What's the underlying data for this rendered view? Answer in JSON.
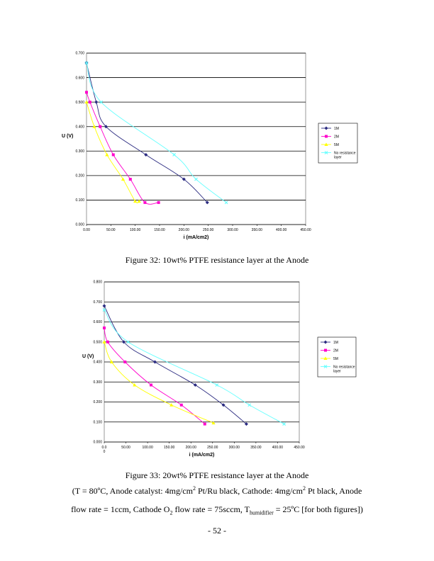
{
  "chart_data": [
    {
      "type": "line",
      "title": "",
      "xlabel": "i (mA/cm2)",
      "ylabel": "U (V)",
      "xlim": [
        0,
        450
      ],
      "ylim": [
        0,
        0.7
      ],
      "grid": true,
      "xticks": [
        "0.00",
        "50.00",
        "100.00",
        "150.00",
        "200.00",
        "250.00",
        "300.00",
        "350.00",
        "400.00",
        "450.00"
      ],
      "yticks": [
        "0.000",
        "0.100",
        "0.200",
        "0.300",
        "0.400",
        "0.500",
        "0.600",
        "0.700"
      ],
      "series": [
        {
          "name": "1M",
          "color": "#2b2b80",
          "marker": "diamond",
          "x": [
            0,
            20,
            40,
            122,
            200,
            248
          ],
          "y": [
            0.66,
            0.5,
            0.4,
            0.285,
            0.185,
            0.09
          ]
        },
        {
          "name": "2M",
          "color": "#ff00cc",
          "marker": "square",
          "x": [
            0,
            7,
            28,
            55,
            90,
            120,
            148
          ],
          "y": [
            0.54,
            0.5,
            0.4,
            0.285,
            0.185,
            0.09,
            0.09
          ]
        },
        {
          "name": "5M",
          "color": "#ffff00",
          "marker": "triangle",
          "x": [
            0,
            16,
            42,
            75,
            100,
            108
          ],
          "y": [
            0.5,
            0.4,
            0.285,
            0.185,
            0.095,
            0.095
          ]
        },
        {
          "name": "No resistance layer",
          "color": "#66ffff",
          "marker": "x",
          "x": [
            0,
            30,
            180,
            225,
            287
          ],
          "y": [
            0.66,
            0.5,
            0.285,
            0.185,
            0.09
          ]
        }
      ],
      "legend_position": "right"
    },
    {
      "type": "line",
      "title": "",
      "xlabel": "i (mA/cm2)",
      "ylabel": "U (V)",
      "xlim": [
        0,
        450
      ],
      "ylim": [
        0,
        0.8
      ],
      "grid": true,
      "xticks": [
        "0.0\n0",
        "50.00",
        "100.00",
        "150.00",
        "200.00",
        "250.00",
        "300.00",
        "350.00",
        "400.00",
        "450.00"
      ],
      "yticks": [
        "0.000",
        "0.100",
        "0.200",
        "0.300",
        "0.400",
        "0.500",
        "0.600",
        "0.700",
        "0.800"
      ],
      "series": [
        {
          "name": "1M",
          "color": "#2b2b80",
          "marker": "diamond",
          "x": [
            0,
            45,
            117,
            210,
            275,
            328
          ],
          "y": [
            0.68,
            0.5,
            0.4,
            0.285,
            0.185,
            0.09
          ]
        },
        {
          "name": "2M",
          "color": "#ff00cc",
          "marker": "square",
          "x": [
            0,
            8,
            48,
            108,
            178,
            232
          ],
          "y": [
            0.57,
            0.5,
            0.4,
            0.285,
            0.185,
            0.09
          ]
        },
        {
          "name": "5M",
          "color": "#ffff00",
          "marker": "triangle",
          "x": [
            0,
            17,
            70,
            155,
            252
          ],
          "y": [
            0.5,
            0.4,
            0.285,
            0.185,
            0.095
          ]
        },
        {
          "name": "No resistance layer",
          "color": "#66ffff",
          "marker": "x",
          "x": [
            0,
            55,
            260,
            335,
            415
          ],
          "y": [
            0.66,
            0.5,
            0.285,
            0.185,
            0.09
          ]
        }
      ],
      "legend_position": "right"
    }
  ],
  "figure1_caption": "Figure 32: 10wt% PTFE resistance layer at the Anode",
  "figure2_caption": "Figure 33:  20wt% PTFE resistance layer at the Anode",
  "conditions": {
    "p1": "(T = 80ºC, Anode catalyst: 4mg/cm",
    "sup1": "2",
    "p2": " Pt/Ru black, Cathode: 4mg/cm",
    "sup2": "2",
    "p3": " Pt black, Anode",
    "p4": "flow rate = 1ccm, Cathode O",
    "sub1": "2",
    "p5": " flow rate = 75sccm, T",
    "sub2": "humidifier",
    "p6": " = 25ºC [for both figures])"
  },
  "page_number": "- 52 -"
}
